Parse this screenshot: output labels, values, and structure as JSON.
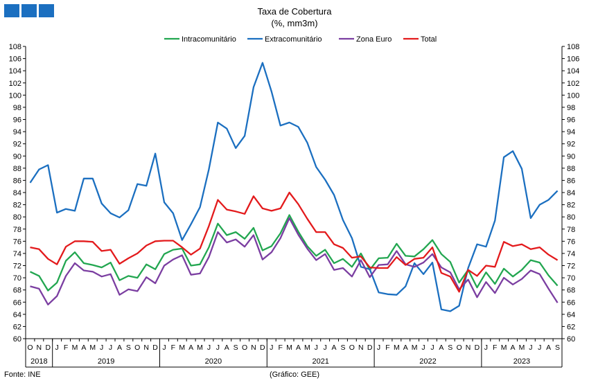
{
  "chart_data": {
    "type": "line",
    "title": "Taxa de Cobertura",
    "subtitle": "(%, mm3m)",
    "source": "Fonte: INE",
    "credit": "(Gráfico: GEE)",
    "ylim": [
      60,
      108
    ],
    "ystep": 2,
    "grid": false,
    "legend_position": "top",
    "x_month_labels": [
      "O",
      "N",
      "D",
      "J",
      "F",
      "M",
      "A",
      "M",
      "J",
      "J",
      "A",
      "S",
      "O",
      "N",
      "D",
      "J",
      "F",
      "M",
      "A",
      "M",
      "J",
      "J",
      "A",
      "S",
      "O",
      "N",
      "D",
      "J",
      "F",
      "M",
      "A",
      "M",
      "J",
      "J",
      "A",
      "S",
      "O",
      "N",
      "D",
      "J",
      "F",
      "M",
      "A",
      "M",
      "J",
      "J",
      "A",
      "S",
      "O",
      "N",
      "D",
      "J",
      "F",
      "M",
      "A",
      "M",
      "J",
      "J",
      "A",
      "S"
    ],
    "years": [
      {
        "label": "2018",
        "start": 0,
        "end": 2
      },
      {
        "label": "2019",
        "start": 3,
        "end": 14
      },
      {
        "label": "2020",
        "start": 15,
        "end": 26
      },
      {
        "label": "2021",
        "start": 27,
        "end": 38
      },
      {
        "label": "2022",
        "start": 39,
        "end": 50
      },
      {
        "label": "2023",
        "start": 51,
        "end": 59
      }
    ],
    "series": [
      {
        "name": "Intracomunitário",
        "color": "#22a650",
        "values": [
          71.0,
          70.3,
          67.9,
          69.2,
          72.8,
          74.2,
          72.4,
          72.1,
          71.7,
          72.5,
          69.6,
          70.3,
          70.0,
          72.2,
          71.4,
          73.9,
          74.6,
          74.8,
          72.0,
          72.2,
          75.0,
          78.9,
          77.0,
          77.5,
          76.4,
          78.2,
          74.5,
          75.2,
          77.3,
          80.3,
          77.6,
          75.2,
          73.6,
          74.6,
          72.4,
          73.1,
          71.8,
          74.0,
          71.3,
          73.2,
          73.3,
          75.6,
          73.6,
          73.5,
          74.7,
          76.2,
          73.9,
          72.6,
          69.2,
          71.3,
          68.4,
          70.9,
          69.0,
          71.5,
          70.2,
          71.3,
          72.9,
          72.5,
          70.4,
          68.7
        ]
      },
      {
        "name": "Extracomunitário",
        "color": "#1b6fc0",
        "values": [
          85.6,
          87.8,
          88.5,
          80.7,
          81.3,
          81.0,
          86.3,
          86.3,
          82.2,
          80.6,
          79.9,
          81.1,
          85.4,
          85.1,
          90.4,
          82.4,
          80.6,
          76.2,
          78.8,
          81.6,
          87.8,
          95.5,
          94.5,
          91.3,
          93.3,
          101.3,
          105.3,
          100.6,
          95.0,
          95.5,
          94.8,
          92.2,
          88.2,
          86.1,
          83.6,
          79.5,
          76.5,
          71.8,
          71.4,
          67.6,
          67.3,
          67.2,
          68.6,
          72.4,
          70.6,
          72.5,
          64.8,
          64.5,
          65.4,
          71.6,
          75.5,
          75.1,
          79.4,
          89.8,
          90.8,
          87.9,
          79.8,
          82.0,
          82.8,
          84.3
        ]
      },
      {
        "name": "Zona Euro",
        "color": "#7b3ea1",
        "values": [
          68.6,
          68.2,
          65.6,
          67.0,
          70.3,
          72.4,
          71.2,
          71.0,
          70.2,
          70.6,
          67.2,
          68.1,
          67.8,
          70.1,
          69.1,
          72.0,
          73.0,
          73.7,
          70.5,
          70.7,
          73.4,
          77.5,
          75.8,
          76.3,
          75.1,
          77.0,
          73.0,
          74.2,
          76.5,
          79.8,
          77.1,
          74.8,
          72.9,
          73.9,
          71.3,
          71.6,
          70.2,
          72.9,
          70.1,
          72.1,
          72.2,
          74.4,
          72.2,
          71.8,
          72.5,
          73.9,
          71.7,
          70.9,
          68.1,
          69.7,
          66.8,
          69.3,
          67.5,
          70.0,
          68.9,
          69.8,
          71.2,
          70.6,
          68.2,
          65.9
        ]
      },
      {
        "name": "Total",
        "color": "#e31a1c",
        "values": [
          75.0,
          74.7,
          73.1,
          72.2,
          75.1,
          76.0,
          76.0,
          75.9,
          74.4,
          74.6,
          72.3,
          73.2,
          74.0,
          75.3,
          76.0,
          76.1,
          76.1,
          75.0,
          73.8,
          74.8,
          78.5,
          82.8,
          81.2,
          80.9,
          80.5,
          83.4,
          81.4,
          81.0,
          81.4,
          84.0,
          82.1,
          79.7,
          77.5,
          77.5,
          75.5,
          74.9,
          73.3,
          73.5,
          71.7,
          71.6,
          71.6,
          73.4,
          72.1,
          73.1,
          73.3,
          75.0,
          70.8,
          70.2,
          67.7,
          71.3,
          70.3,
          72.0,
          71.8,
          75.9,
          75.2,
          75.5,
          74.7,
          75.0,
          73.8,
          72.9
        ]
      }
    ]
  }
}
